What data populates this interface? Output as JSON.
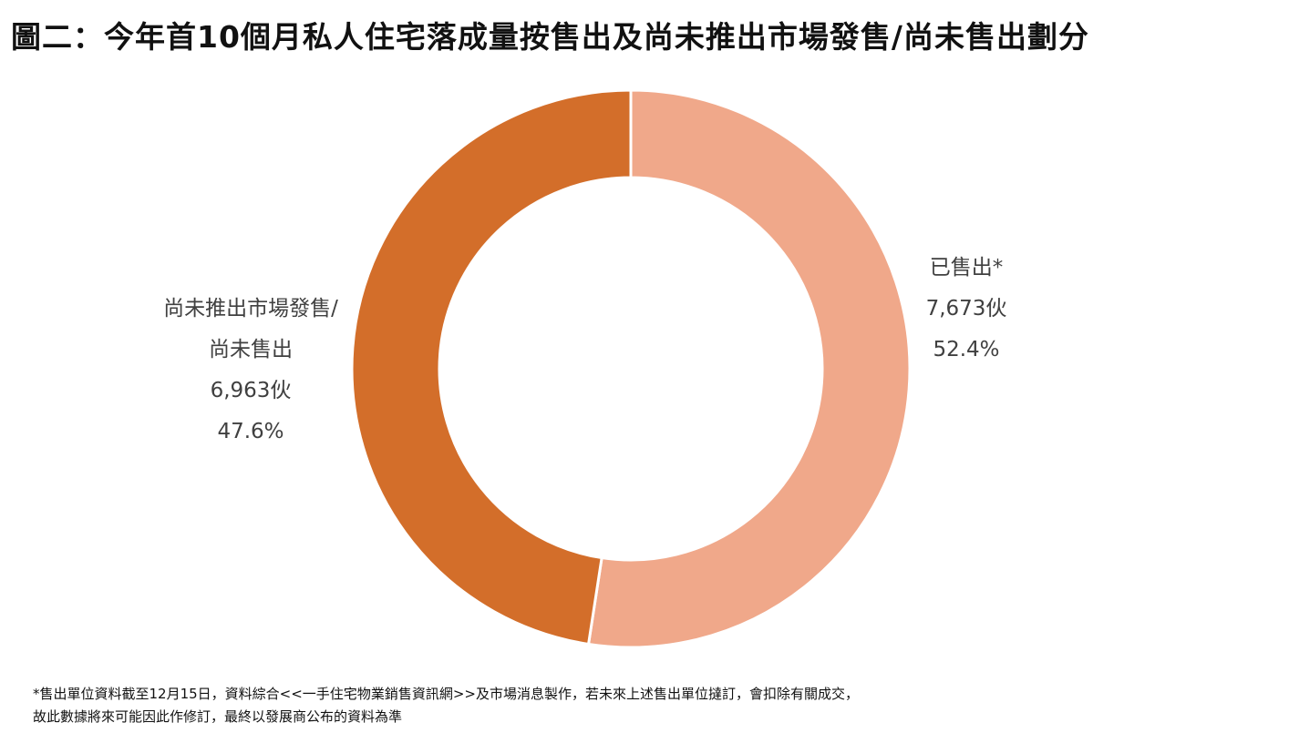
{
  "chart_data": {
    "type": "pie",
    "donut": true,
    "title": "圖二：今年首10個月私人住宅落成量按售出及尚未推出市場發售/尚未售出劃分",
    "slices": [
      {
        "name": "已售出*",
        "value": 7673,
        "value_label": "7,673伙",
        "percent": 52.4,
        "percent_label": "52.4%",
        "color": "#F0A88A"
      },
      {
        "name_lines": [
          "尚未推出市場發售/",
          "尚未售出"
        ],
        "name": "尚未推出市場發售/尚未售出",
        "value": 6963,
        "value_label": "6,963伙",
        "percent": 47.6,
        "percent_label": "47.6%",
        "color": "#D36E2A"
      }
    ],
    "start_angle": "top",
    "direction": "clockwise"
  },
  "footnote": {
    "line1": "*售出單位資料截至12月15日，資料綜合<<一手住宅物業銷售資訊網>>及市場消息製作，若未來上述售出單位撻訂，會扣除有關成交，",
    "line2": "故此數據將來可能因此作修訂，最終以發展商公布的資料為準"
  }
}
